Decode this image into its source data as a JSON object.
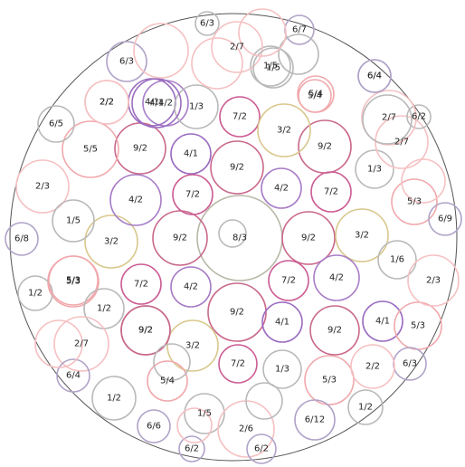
{
  "circles": [
    {
      "label": "8/3",
      "color": "#b8b8a8"
    },
    {
      "label": "9/2",
      "color": "#c9688c"
    },
    {
      "label": "9/2",
      "color": "#c9688c"
    },
    {
      "label": "9/2",
      "color": "#c9688c"
    },
    {
      "label": "9/2",
      "color": "#c9688c"
    },
    {
      "label": "7/2",
      "color": "#cc5d94"
    },
    {
      "label": "4/2",
      "color": "#a77cc7"
    },
    {
      "label": "3/2",
      "color": "#d8c78c"
    },
    {
      "label": "4/1",
      "color": "#9a6cc0"
    },
    {
      "label": "7/2",
      "color": "#cc5d94"
    },
    {
      "label": "9/2",
      "color": "#c9688c"
    },
    {
      "label": "3/2",
      "color": "#d8c78c"
    },
    {
      "label": "7/2",
      "color": "#cc5d94"
    },
    {
      "label": "4/2",
      "color": "#a77cc7"
    },
    {
      "label": "9/2",
      "color": "#c9688c"
    },
    {
      "label": "7/2",
      "color": "#cc5d94"
    },
    {
      "label": "4/2",
      "color": "#a77cc7"
    },
    {
      "label": "4/1",
      "color": "#9a6cc0"
    },
    {
      "label": "4/2",
      "color": "#a77cc7"
    },
    {
      "label": "7/2",
      "color": "#cc5d94"
    },
    {
      "label": "3/2",
      "color": "#d8c78c"
    },
    {
      "label": "3/2",
      "color": "#d8c78c"
    },
    {
      "label": "9/2",
      "color": "#c9688c"
    },
    {
      "label": "4/2",
      "color": "#a77cc7"
    },
    {
      "label": "7/2",
      "color": "#cc5d94"
    },
    {
      "label": "4/1",
      "color": "#9a6cc0"
    },
    {
      "label": "9/2",
      "color": "#c9688c"
    },
    {
      "label": "4/1",
      "color": "#9a6cc0"
    },
    {
      "label": "9/2",
      "color": "#c9688c"
    },
    {
      "label": "1/3",
      "color": "#b9b9b9"
    },
    {
      "label": "5/3",
      "color": "#f0a8ac"
    },
    {
      "label": "1/3",
      "color": "#b9b9b9"
    },
    {
      "label": "5/4",
      "color": "#f0a8ac"
    },
    {
      "label": "2/7",
      "color": "#f5c0c2"
    },
    {
      "label": "2/2",
      "color": "#f5c0c2"
    },
    {
      "label": "6/3",
      "color": "#b9b9b9"
    },
    {
      "label": "5/3",
      "color": "#f0a8ac"
    },
    {
      "label": "2/3",
      "color": "#f5c0c2"
    },
    {
      "label": "5/3",
      "color": "#f0a8ac"
    },
    {
      "label": "1/5",
      "color": "#b9b9b9"
    },
    {
      "label": "6/9",
      "color": "#b0a3c8"
    },
    {
      "label": "1/6",
      "color": "#b9b9b9"
    },
    {
      "label": "6/2",
      "color": "#b9b9b9"
    },
    {
      "label": "2/7",
      "color": "#f5c0c2"
    },
    {
      "label": "1/3",
      "color": "#b9b9b9"
    },
    {
      "label": "5/3",
      "color": "#f0a8ac"
    },
    {
      "label": "5/5",
      "color": "#f0a8ac"
    },
    {
      "label": "6/5",
      "color": "#b9b9b9"
    },
    {
      "label": "2/3",
      "color": "#f5c0c2"
    },
    {
      "label": "1/5",
      "color": "#b9b9b9"
    },
    {
      "label": "6/8",
      "color": "#b0a3c8"
    },
    {
      "label": "1/2",
      "color": "#b9b9b9"
    },
    {
      "label": "5/3",
      "color": "#f0a8ac"
    },
    {
      "label": "1/2",
      "color": "#b9b9b9"
    },
    {
      "label": "2/7",
      "color": "#f5c0c2"
    },
    {
      "label": "6/4",
      "color": "#b0a3c8"
    },
    {
      "label": "1/2",
      "color": "#b9b9b9"
    },
    {
      "label": "6/6",
      "color": "#b0a3c8"
    },
    {
      "label": "1/5",
      "color": "#b9b9b9"
    },
    {
      "label": "6/2",
      "color": "#b0a3c8"
    },
    {
      "label": "2/6",
      "color": "#f5c0c2"
    },
    {
      "label": "6/2",
      "color": "#b0a3c8"
    },
    {
      "label": "6/12",
      "color": "#b0a3c8"
    },
    {
      "label": "5/4",
      "color": "#f0a8ac"
    },
    {
      "label": "1/2",
      "color": "#b9b9b9"
    },
    {
      "label": "6/3",
      "color": "#b0a3c8"
    },
    {
      "label": "2/2",
      "color": "#f5c0c2"
    },
    {
      "label": "2/2",
      "color": "#f5c0c2"
    },
    {
      "label": "4/1",
      "color": "#9a6cc0"
    },
    {
      "label": "6/4",
      "color": "#b0a3c8"
    },
    {
      "label": "6/3",
      "color": "#b0a3c8"
    },
    {
      "label": "2/7",
      "color": "#f5c0c2"
    },
    {
      "label": "6/7",
      "color": "#b0a3c8"
    },
    {
      "label": "1/5",
      "color": "#b9b9b9"
    },
    {
      "label": "5/4",
      "color": "#f0a8ac"
    },
    {
      "label": "6/4",
      "color": "#b0a3c8"
    },
    {
      "label": "",
      "color": "#f5c0c2"
    },
    {
      "label": "",
      "color": "#f5c0c2"
    },
    {
      "label": "",
      "color": "#b9b9b9"
    },
    {
      "label": "",
      "color": "#f5c0c2"
    },
    {
      "label": "",
      "color": "#b9b9b9"
    },
    {
      "label": "",
      "color": "#f5c0c2"
    },
    {
      "label": "",
      "color": "#b9b9b9"
    },
    {
      "label": "",
      "color": "#f5c0c2"
    },
    {
      "label": "",
      "color": "#b9b9b9"
    },
    {
      "label": "",
      "color": "#f5c0c2"
    },
    {
      "label": "",
      "color": "#b9b9b9"
    }
  ]
}
